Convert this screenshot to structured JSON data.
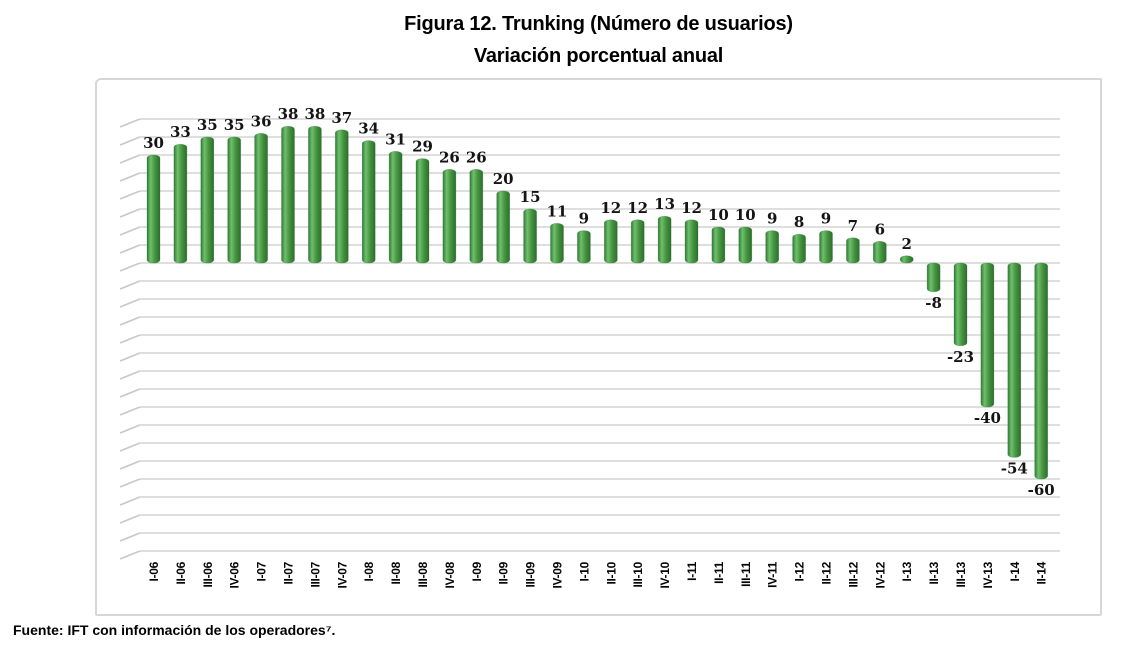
{
  "title": {
    "line1": "Figura 12. Trunking (Número de usuarios)",
    "line2": "Variación porcentual anual"
  },
  "footer": {
    "text": "Fuente: IFT con información de los operadores⁷."
  },
  "chart_data": {
    "type": "bar",
    "title": "Figura 12. Trunking (Número de usuarios)",
    "subtitle": "Variación porcentual anual",
    "categories": [
      "I-06",
      "II-06",
      "III-06",
      "IV-06",
      "I-07",
      "II-07",
      "III-07",
      "IV-07",
      "I-08",
      "II-08",
      "III-08",
      "IV-08",
      "I-09",
      "II-09",
      "III-09",
      "IV-09",
      "I-10",
      "II-10",
      "III-10",
      "IV-10",
      "I-11",
      "II-11",
      "III-11",
      "IV-11",
      "I-12",
      "II-12",
      "III-12",
      "IV-12",
      "I-13",
      "II-13",
      "III-13",
      "IV-13",
      "I-14",
      "II-14"
    ],
    "values": [
      30,
      33,
      35,
      35,
      36,
      38,
      38,
      37,
      34,
      31,
      29,
      26,
      26,
      20,
      15,
      11,
      9,
      12,
      12,
      13,
      12,
      10,
      10,
      9,
      8,
      9,
      7,
      6,
      2,
      -8,
      -23,
      -40,
      -54,
      -60
    ],
    "xlabel": "",
    "ylabel": "",
    "ylim": [
      -80,
      40
    ],
    "grid_step": 5,
    "grid": true,
    "legend_position": "none",
    "data_labels": true,
    "colors": {
      "bar_mid": "#46953f",
      "bar_light": "#6fbf6d",
      "bar_dark_left": "#2f7a35",
      "bar_dark_right": "#2c6e2e",
      "gridline": "#d9d9d9",
      "grid_tick": "#c9c9c9",
      "label": "#141414"
    }
  }
}
